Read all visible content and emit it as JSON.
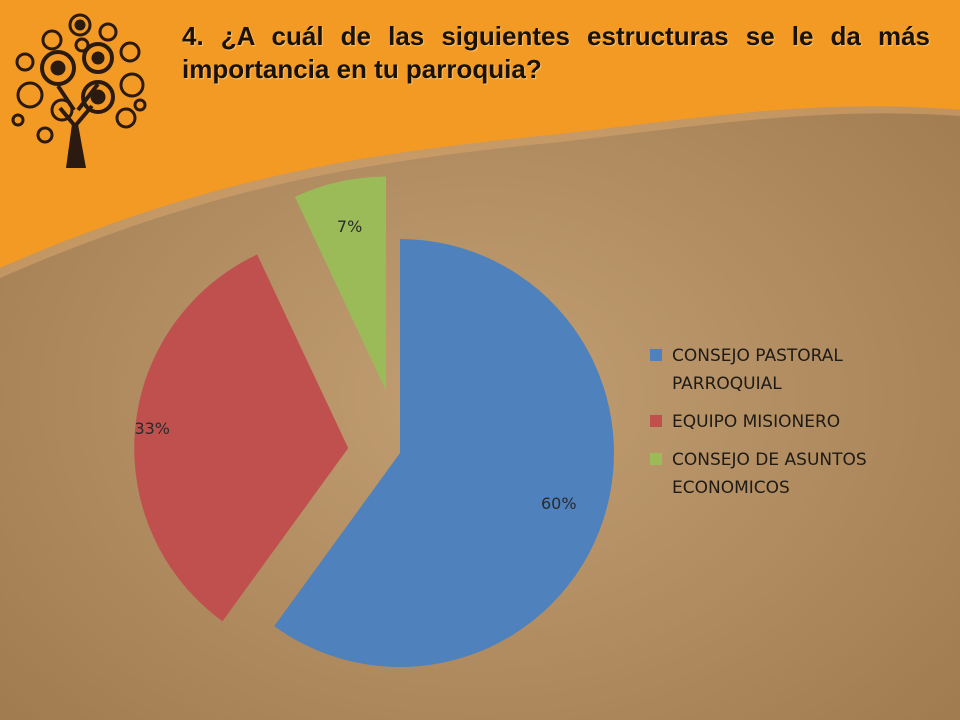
{
  "slide": {
    "title": "4. ¿A cuál de las siguientes estructuras se le da más importancia en tu parroquia?"
  },
  "colors": {
    "header_orange": "#f39a25",
    "background_tan": "#b08b5e",
    "logo": "#2b1a10"
  },
  "icons": [
    "gear-tree-logo-icon"
  ],
  "chart_data": {
    "type": "pie",
    "title": "",
    "exploded": true,
    "categories": [
      "CONSEJO PASTORAL PARROQUIAL",
      "EQUIPO MISIONERO",
      "CONSEJO DE ASUNTOS ECONOMICOS"
    ],
    "values": [
      60,
      33,
      7
    ],
    "data_labels": [
      "60%",
      "33%",
      "7%"
    ],
    "colors": [
      "#4f81bd",
      "#c0504d",
      "#9bbb59"
    ],
    "legend": {
      "position": "right",
      "entries": [
        "CONSEJO PASTORAL PARROQUIAL",
        "EQUIPO MISIONERO",
        "CONSEJO DE ASUNTOS ECONOMICOS"
      ]
    }
  }
}
